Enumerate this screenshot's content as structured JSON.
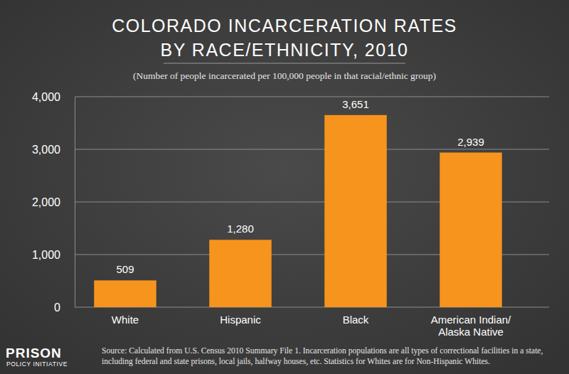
{
  "chart_data": {
    "type": "bar",
    "title": [
      "COLORADO INCARCERATION RATES",
      "BY RACE/ETHNICITY, 2010"
    ],
    "subtitle": "(Number of people incarcerated per 100,000 people in that racial/ethnic group)",
    "categories": [
      "White",
      "Hispanic",
      "Black",
      "American Indian/ Alaska Native"
    ],
    "values": [
      509,
      1280,
      3651,
      2939
    ],
    "value_labels": [
      "509",
      "1,280",
      "3,651",
      "2,939"
    ],
    "data_labels": true,
    "color": "#f7941d",
    "ylim": [
      0,
      4000
    ],
    "yticks": [
      0,
      {
        "value": 1000,
        "label": "1,000"
      },
      {
        "value": 2000,
        "label": "2,000"
      },
      {
        "value": 3000,
        "label": "3,000"
      },
      {
        "value": 4000,
        "label": "4,000"
      }
    ],
    "grid": true,
    "annotations": [
      "Source: Calculated from U.S. Census 2010 Summary File 1. Incarceration populations are all types of correctional facilities in a state, including federal and state prisons, local jails, halfway houses, etc. Statistics for Whites are for Non-Hispanic Whites.",
      "PRISON",
      "POLICY INITIATIVE"
    ]
  }
}
